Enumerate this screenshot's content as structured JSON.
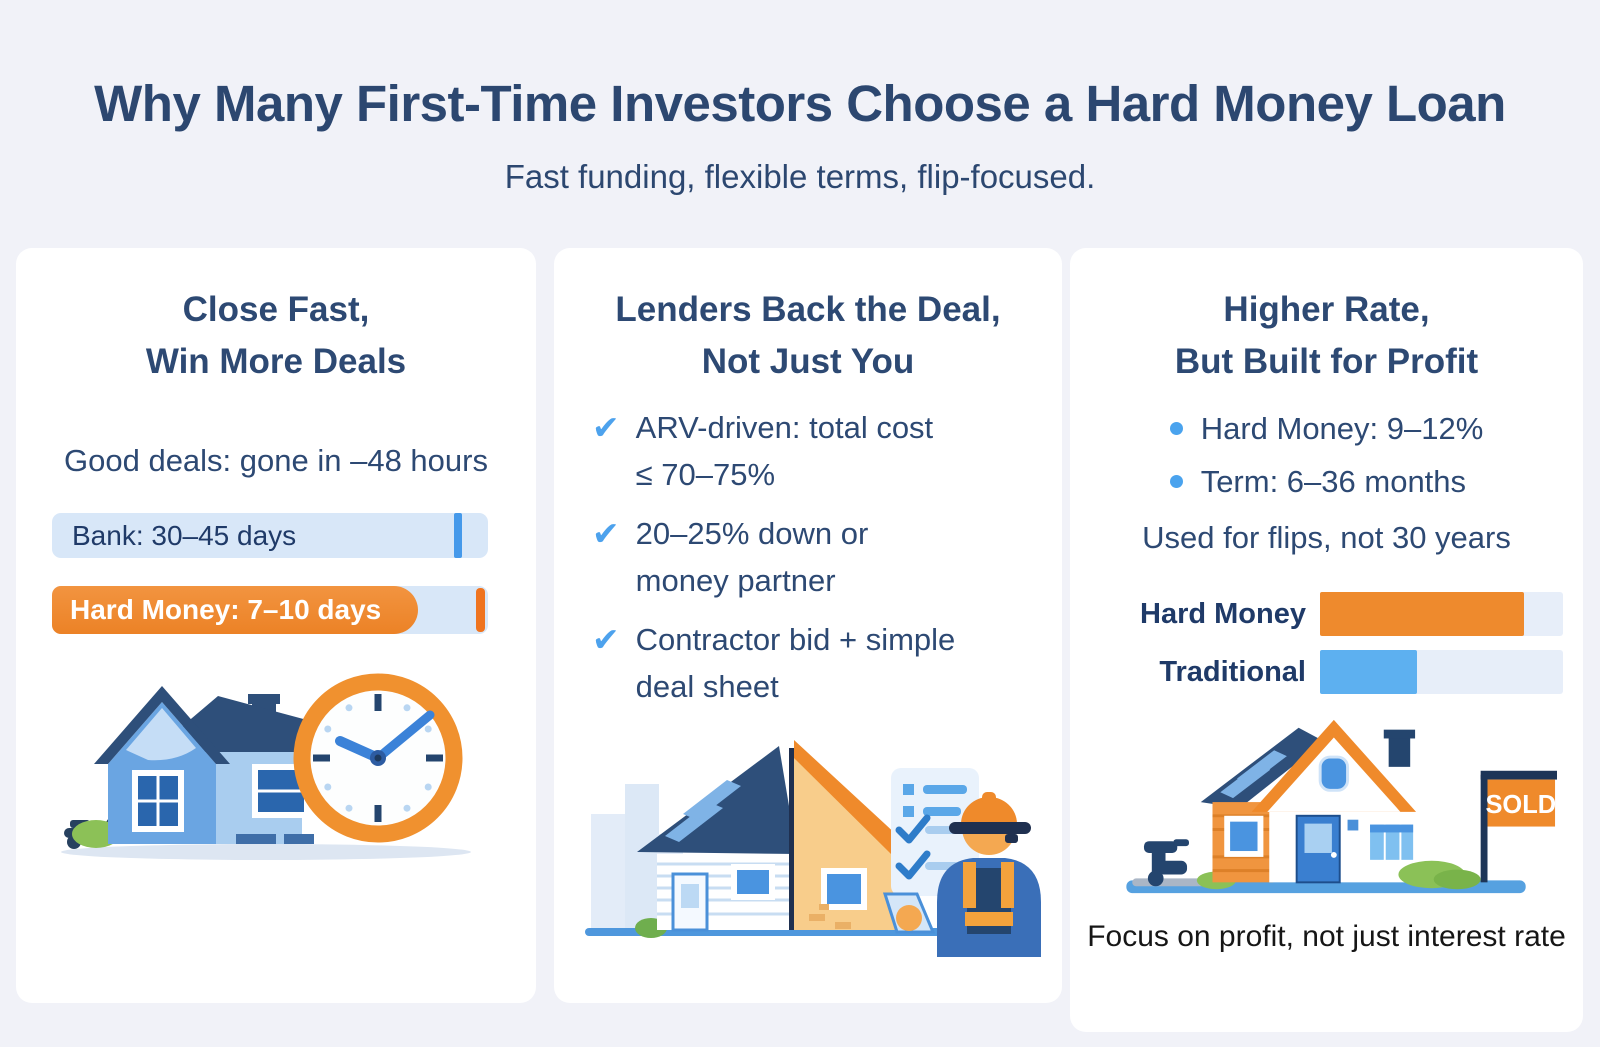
{
  "page": {
    "title": "Why Many First-Time Investors Choose a Hard Money Loan",
    "subtitle": "Fast funding, flexible terms, flip-focused."
  },
  "colors": {
    "background": "#f1f2f8",
    "card": "#ffffff",
    "navy_text": "#2d4973",
    "orange": "#ee8a2d",
    "track_light_blue": "#d8e7f8",
    "tick_blue": "#4599ea",
    "bar_blue": "#5db0f0",
    "check_blue": "#4da2ed",
    "caption_black": "#161616"
  },
  "icons": {
    "check_glyph": "✔"
  },
  "cards": [
    {
      "title_line1": "Close Fast,",
      "title_line2": "Win More Deals",
      "lead": "Good deals: gone in –48 hours",
      "bars": [
        {
          "label": "Bank: 30–45 days",
          "kind": "track-with-tick",
          "fill_pct": 100
        },
        {
          "label": "Hard Money: 7–10 days",
          "kind": "orange-fill",
          "fill_pct": 84
        }
      ],
      "illustration": "house-with-clock"
    },
    {
      "title_line1": "Lenders Back the Deal,",
      "title_line2": "Not Just You",
      "checklist": [
        {
          "line1": "ARV-driven: total cost",
          "line2": "≤ 70–75%"
        },
        {
          "line1": "20–25% down or",
          "line2": "money partner"
        },
        {
          "line1": "Contractor bid + simple",
          "line2": "deal sheet"
        }
      ],
      "illustration": "split-house-contractor-checklist"
    },
    {
      "title_line1": "Higher Rate,",
      "title_line2": "But Built for Profit",
      "bullets": [
        "Hard Money: 9–12%",
        "Term: 6–36 months"
      ],
      "note": "Used for flips, not 30 years",
      "rate_bars": [
        {
          "label": "Hard Money",
          "fill_pct": 84,
          "color": "#ee8a2d"
        },
        {
          "label": "Traditional",
          "fill_pct": 40,
          "color": "#5db0f0"
        }
      ],
      "illustration": {
        "name": "sold-house",
        "sold_label": "SOLD"
      },
      "caption": "Focus on profit, not just interest rate"
    }
  ]
}
